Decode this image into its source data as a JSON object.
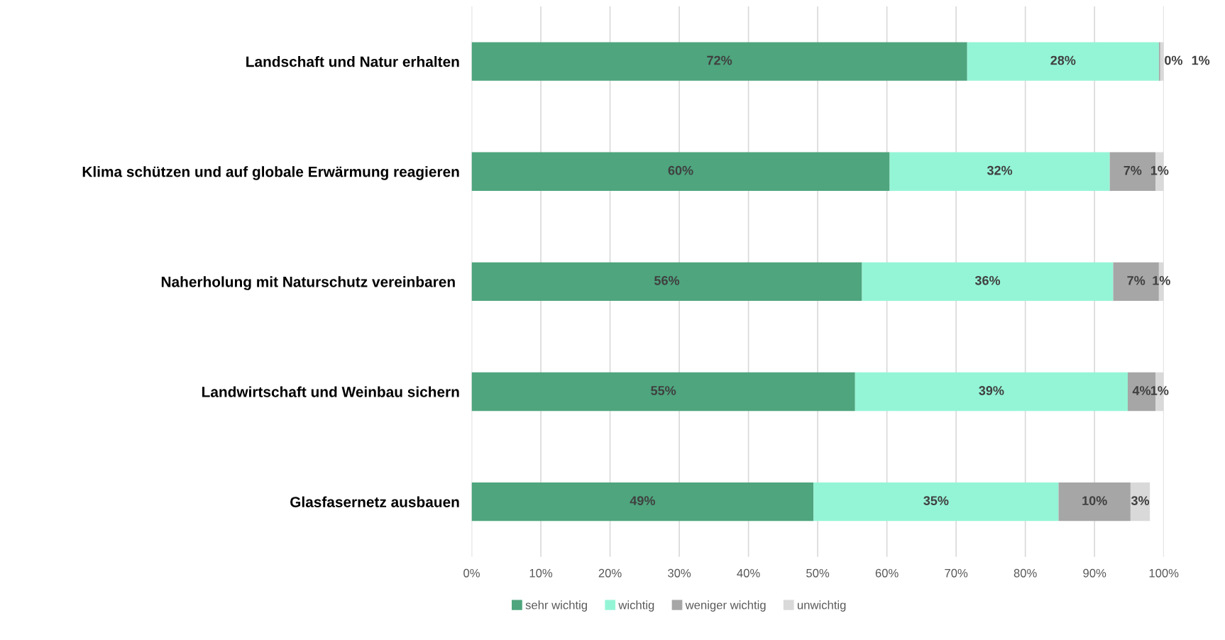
{
  "chart_data": {
    "type": "bar",
    "orientation": "horizontal",
    "stacked": true,
    "categories": [
      "Landschaft und Natur erhalten",
      "Klima schützen und auf globale Erwärmung reagieren",
      "Naherholung mit Naturschutz vereinbaren ",
      "Landwirtschaft und Weinbau sichern",
      "Glasfasernetz ausbauen"
    ],
    "series": [
      {
        "name": "sehr wichtig",
        "color": "#4ea57e",
        "values": [
          71.6,
          60.4,
          56.4,
          55.4,
          49.4
        ],
        "value_labels": [
          "72%",
          "60%",
          "56%",
          "55%",
          "49%"
        ]
      },
      {
        "name": "wichtig",
        "color": "#94f5d6",
        "values": [
          27.7,
          31.8,
          36.3,
          39.4,
          35.4
        ],
        "value_labels": [
          "28%",
          "32%",
          "36%",
          "39%",
          "35%"
        ]
      },
      {
        "name": "weniger wichtig",
        "color": "#a6a6a6",
        "values": [
          0.2,
          6.6,
          6.6,
          4.0,
          10.4
        ],
        "value_labels": [
          "0%",
          "7%",
          "7%",
          "4%",
          "10%"
        ]
      },
      {
        "name": "unwichtig",
        "color": "#d9d9d9",
        "values": [
          0.5,
          1.2,
          0.7,
          1.2,
          2.8
        ],
        "value_labels": [
          "1%",
          "1%",
          "1%",
          "1%",
          "3%"
        ]
      }
    ],
    "xlim": [
      0,
      100
    ],
    "xticks": [
      {
        "value": 0,
        "label": "0%"
      },
      {
        "value": 10,
        "label": "10%"
      },
      {
        "value": 20,
        "label": "20%"
      },
      {
        "value": 30,
        "label": "30%"
      },
      {
        "value": 40,
        "label": "40%"
      },
      {
        "value": 50,
        "label": "50%"
      },
      {
        "value": 60,
        "label": "60%"
      },
      {
        "value": 70,
        "label": "70%"
      },
      {
        "value": 80,
        "label": "80%"
      },
      {
        "value": 90,
        "label": "90%"
      },
      {
        "value": 100,
        "label": "100%"
      }
    ],
    "grid": "x",
    "legend": "bottom"
  }
}
